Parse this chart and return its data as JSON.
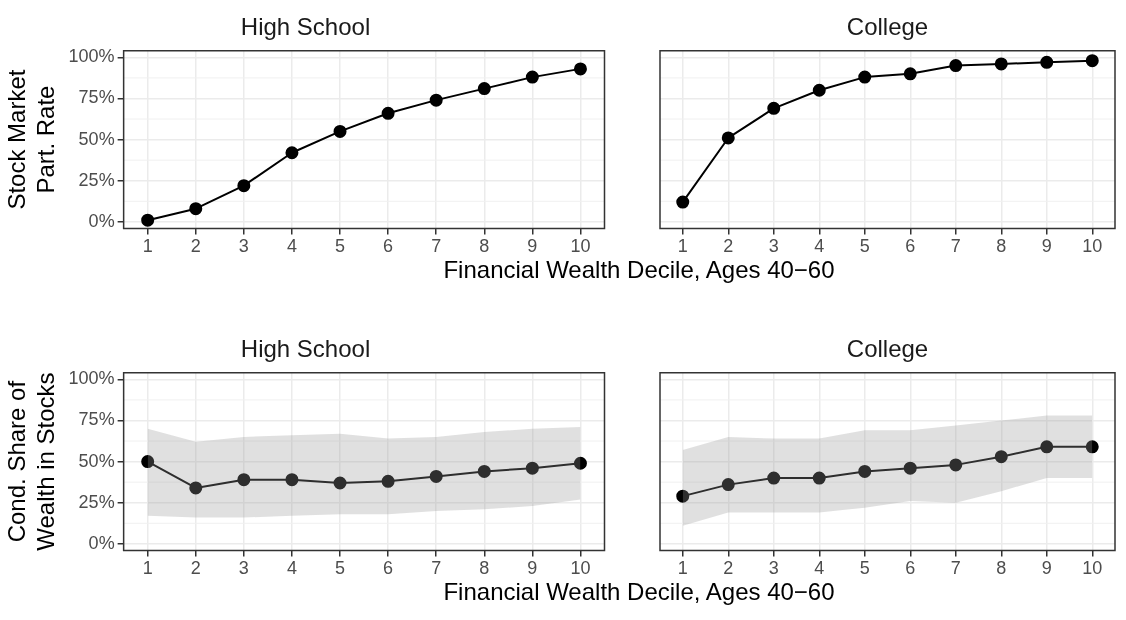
{
  "chart_data": [
    {
      "type": "line",
      "title": "High School",
      "xlabel": "Financial Wealth Decile, Ages 40−60",
      "ylabel": "Stock Market\nPart. Rate",
      "categories": [
        "1",
        "2",
        "3",
        "4",
        "5",
        "6",
        "7",
        "8",
        "9",
        "10"
      ],
      "series": [
        {
          "color": "#000000",
          "values": [
            1,
            8,
            22,
            42,
            55,
            66,
            74,
            81,
            88,
            93
          ]
        }
      ],
      "ylim": [
        -4,
        104
      ],
      "yticks": [
        {
          "value": 0,
          "label": "0%"
        },
        {
          "value": 25,
          "label": "25%"
        },
        {
          "value": 50,
          "label": "50%"
        },
        {
          "value": 75,
          "label": "75%"
        },
        {
          "value": 100,
          "label": "100%"
        }
      ],
      "grid": true,
      "marker": "circle",
      "line_style": "solid",
      "legend": false
    },
    {
      "type": "line",
      "title": "College",
      "categories": [
        "1",
        "2",
        "3",
        "4",
        "5",
        "6",
        "7",
        "8",
        "9",
        "10"
      ],
      "series": [
        {
          "color": "#000000",
          "values": [
            12,
            51,
            69,
            80,
            88,
            90,
            95,
            96,
            97,
            98
          ]
        }
      ],
      "ylim": [
        -4,
        104
      ],
      "yticks": [
        0,
        25,
        50,
        75,
        100
      ],
      "tick_labels": "x",
      "grid": true,
      "marker": "circle",
      "line_style": "solid",
      "legend": false
    },
    {
      "type": "line",
      "title": "High School",
      "xlabel": "Financial Wealth Decile, Ages 40−60",
      "ylabel": "Cond. Share of\nWealth in Stocks",
      "categories": [
        "1",
        "2",
        "3",
        "4",
        "5",
        "6",
        "7",
        "8",
        "9",
        "10"
      ],
      "series": [
        {
          "color": "#000000",
          "values": [
            50,
            34,
            39,
            39,
            37,
            38,
            41,
            44,
            46,
            49
          ],
          "lower": [
            17,
            16,
            16,
            17,
            18,
            18,
            20,
            21,
            23,
            27
          ],
          "upper": [
            70,
            62,
            65,
            66,
            67,
            64,
            65,
            68,
            70,
            71
          ]
        }
      ],
      "ylim": [
        -4,
        104
      ],
      "yticks": [
        {
          "value": 0,
          "label": "0%"
        },
        {
          "value": 25,
          "label": "25%"
        },
        {
          "value": 50,
          "label": "50%"
        },
        {
          "value": 75,
          "label": "75%"
        },
        {
          "value": 100,
          "label": "100%"
        }
      ],
      "grid": true,
      "marker": "circle",
      "line_style": "solid",
      "legend": false
    },
    {
      "type": "line",
      "title": "College",
      "categories": [
        "1",
        "2",
        "3",
        "4",
        "5",
        "6",
        "7",
        "8",
        "9",
        "10"
      ],
      "series": [
        {
          "color": "#000000",
          "values": [
            29,
            36,
            40,
            40,
            44,
            46,
            48,
            53,
            59,
            59
          ],
          "lower": [
            11,
            19,
            19,
            19,
            22,
            26,
            25,
            32,
            40,
            40
          ],
          "upper": [
            57,
            65,
            64,
            64,
            69,
            69,
            72,
            75,
            78,
            78
          ]
        }
      ],
      "ylim": [
        -4,
        104
      ],
      "yticks": [
        0,
        25,
        50,
        75,
        100
      ],
      "tick_labels": "x",
      "grid": true,
      "marker": "circle",
      "line_style": "solid",
      "legend": false
    }
  ]
}
